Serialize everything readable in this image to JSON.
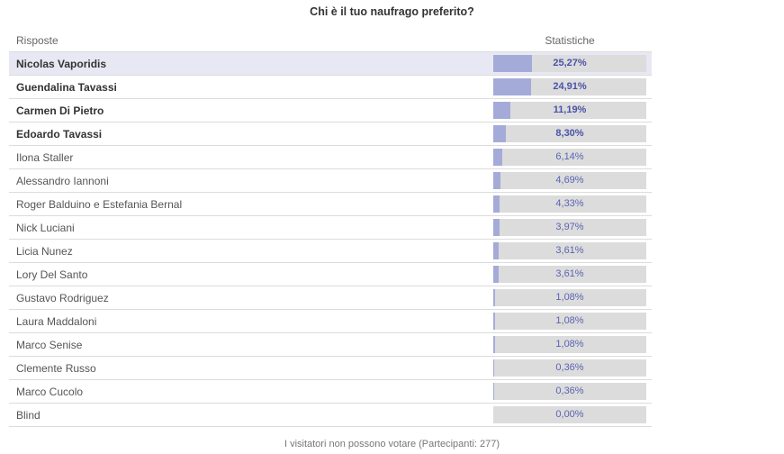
{
  "poll": {
    "title": "Chi è il tuo naufrago preferito?",
    "answers_header": "Risposte",
    "stats_header": "Statistiche",
    "footer": "I visitatori non possono votare (Partecipanti: 277)",
    "colors": {
      "bar_fill": "#a5abd8",
      "bar_track": "#dcdcdc",
      "highlight_row": "#e7e8f3",
      "percent_text": "#5b63b3"
    },
    "items": [
      {
        "label": "Nicolas Vaporidis",
        "percent": "25,27%",
        "value": 25.27,
        "bold": true,
        "highlight": true
      },
      {
        "label": "Guendalina Tavassi",
        "percent": "24,91%",
        "value": 24.91,
        "bold": true,
        "highlight": false
      },
      {
        "label": "Carmen Di Pietro",
        "percent": "11,19%",
        "value": 11.19,
        "bold": true,
        "highlight": false
      },
      {
        "label": "Edoardo Tavassi",
        "percent": "8,30%",
        "value": 8.3,
        "bold": true,
        "highlight": false
      },
      {
        "label": "Ilona Staller",
        "percent": "6,14%",
        "value": 6.14,
        "bold": false,
        "highlight": false
      },
      {
        "label": "Alessandro Iannoni",
        "percent": "4,69%",
        "value": 4.69,
        "bold": false,
        "highlight": false
      },
      {
        "label": "Roger Balduino e Estefania Bernal",
        "percent": "4,33%",
        "value": 4.33,
        "bold": false,
        "highlight": false
      },
      {
        "label": "Nick Luciani",
        "percent": "3,97%",
        "value": 3.97,
        "bold": false,
        "highlight": false
      },
      {
        "label": "Licia Nunez",
        "percent": "3,61%",
        "value": 3.61,
        "bold": false,
        "highlight": false
      },
      {
        "label": "Lory Del Santo",
        "percent": "3,61%",
        "value": 3.61,
        "bold": false,
        "highlight": false
      },
      {
        "label": "Gustavo Rodriguez",
        "percent": "1,08%",
        "value": 1.08,
        "bold": false,
        "highlight": false
      },
      {
        "label": "Laura Maddaloni",
        "percent": "1,08%",
        "value": 1.08,
        "bold": false,
        "highlight": false
      },
      {
        "label": "Marco Senise",
        "percent": "1,08%",
        "value": 1.08,
        "bold": false,
        "highlight": false
      },
      {
        "label": "Clemente Russo",
        "percent": "0,36%",
        "value": 0.36,
        "bold": false,
        "highlight": false
      },
      {
        "label": "Marco Cucolo",
        "percent": "0,36%",
        "value": 0.36,
        "bold": false,
        "highlight": false
      },
      {
        "label": "Blind",
        "percent": "0,00%",
        "value": 0.0,
        "bold": false,
        "highlight": false
      }
    ]
  }
}
